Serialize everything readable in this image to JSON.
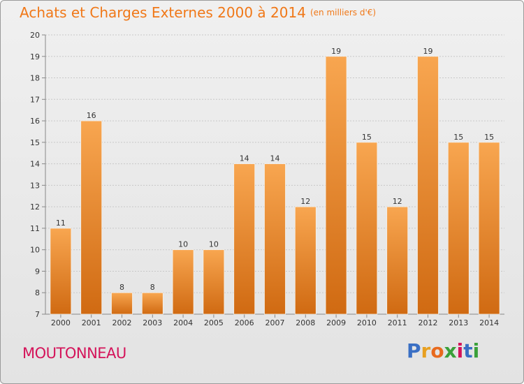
{
  "header": {
    "title": "Achats et Charges Externes 2000 à 2014",
    "unit": "(en milliers d'€)"
  },
  "commune": "MOUTONNEAU",
  "logo": {
    "text": "Proxiti",
    "letters": [
      "P",
      "r",
      "o",
      "x",
      "i",
      "t",
      "i"
    ],
    "colors": [
      "#3a6fc4",
      "#e8a020",
      "#e86a1e",
      "#3aa03a",
      "#d4145a",
      "#3a6fc4",
      "#3aa03a"
    ]
  },
  "chart_data": {
    "type": "bar",
    "categories": [
      "2000",
      "2001",
      "2002",
      "2003",
      "2004",
      "2005",
      "2006",
      "2007",
      "2008",
      "2009",
      "2010",
      "2011",
      "2012",
      "2013",
      "2014"
    ],
    "values": [
      11,
      16,
      8,
      8,
      10,
      10,
      14,
      14,
      12,
      19,
      15,
      12,
      19,
      15,
      15
    ],
    "ylim": [
      7,
      20
    ],
    "yticks": [
      7,
      8,
      9,
      10,
      11,
      12,
      13,
      14,
      15,
      16,
      17,
      18,
      19,
      20
    ],
    "grid": true,
    "bar_color_top": "#f8a650",
    "bar_color_bottom": "#d06a12"
  }
}
